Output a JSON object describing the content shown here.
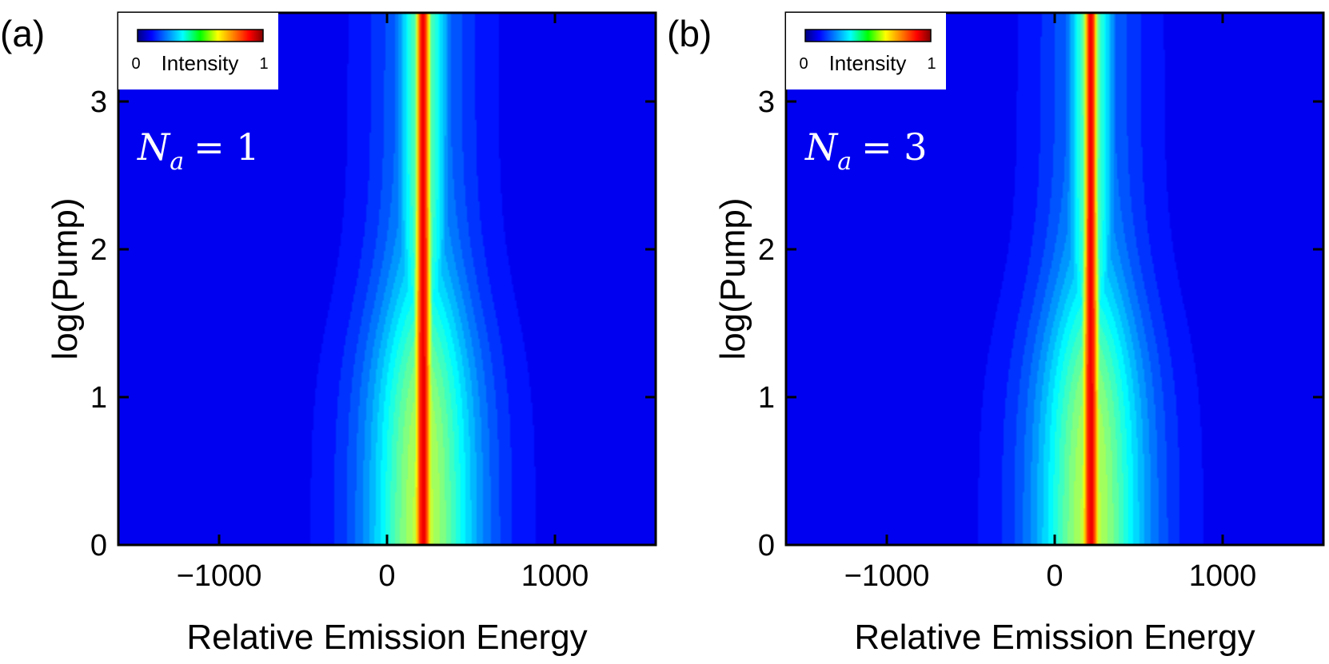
{
  "chart_data": [
    {
      "type": "heatmap",
      "panel_label": "(a)",
      "annotation_var": "N",
      "annotation_sub": "a",
      "annotation_rhs": "= 1",
      "xlabel": "Relative Emission Energy",
      "ylabel": "log(Pump)",
      "xlim": [
        -1600,
        1600
      ],
      "ylim": [
        0,
        3.6
      ],
      "x_ticks": [
        -1000,
        0,
        1000
      ],
      "x_tick_labels": [
        "−1000",
        "0",
        "1000"
      ],
      "y_ticks": [
        0,
        1,
        2,
        3
      ],
      "y_tick_labels": [
        "0",
        "1",
        "2",
        "3"
      ],
      "peak_center": 215,
      "peak_width_low_pump": 45,
      "peak_width_high_pump": 38,
      "background_intensity_low_pump": 0.6,
      "background_intensity_high_pump": 0.22,
      "colorbar": {
        "label": "Intensity",
        "min_label": "0",
        "max_label": "1",
        "colormap": "jet",
        "location": "top-left"
      }
    },
    {
      "type": "heatmap",
      "panel_label": "(b)",
      "annotation_var": "N",
      "annotation_sub": "a",
      "annotation_rhs": "= 3",
      "xlabel": "Relative Emission Energy",
      "ylabel": "log(Pump)",
      "xlim": [
        -1600,
        1600
      ],
      "ylim": [
        0,
        3.6
      ],
      "x_ticks": [
        -1000,
        0,
        1000
      ],
      "x_tick_labels": [
        "−1000",
        "0",
        "1000"
      ],
      "y_ticks": [
        0,
        1,
        2,
        3
      ],
      "y_tick_labels": [
        "0",
        "1",
        "2",
        "3"
      ],
      "peak_center": 215,
      "peak_width_low_pump": 45,
      "peak_width_high_pump": 34,
      "background_intensity_low_pump": 0.6,
      "background_intensity_high_pump": 0.2,
      "colorbar": {
        "label": "Intensity",
        "min_label": "0",
        "max_label": "1",
        "colormap": "jet",
        "location": "top-left"
      }
    }
  ]
}
